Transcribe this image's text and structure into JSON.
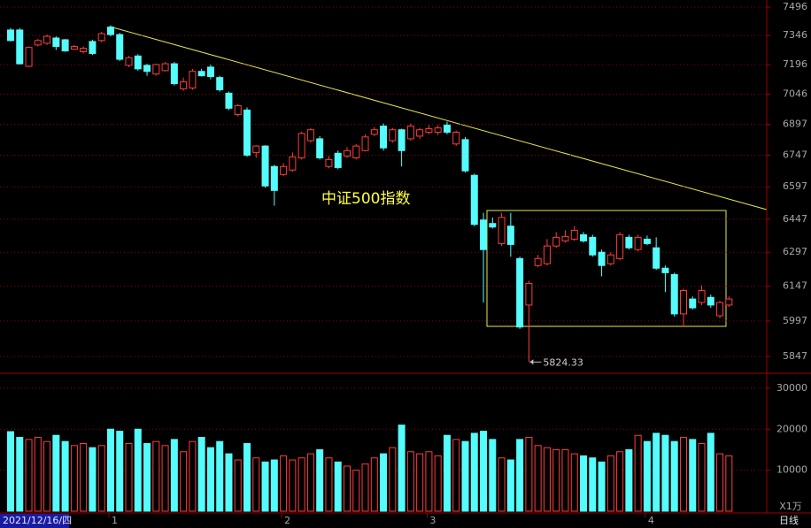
{
  "chart_data": [
    {
      "type": "candlestick",
      "title": "中证500指数",
      "categories": [
        "2021/12/16/四",
        null,
        null,
        null,
        null,
        null,
        null,
        null,
        null,
        null,
        null,
        "1",
        null,
        null,
        null,
        null,
        null,
        null,
        null,
        null,
        null,
        null,
        null,
        null,
        null,
        null,
        null,
        null,
        null,
        null,
        "2",
        null,
        null,
        null,
        null,
        null,
        null,
        null,
        null,
        null,
        null,
        null,
        null,
        null,
        null,
        null,
        "3",
        null,
        null,
        null,
        null,
        null,
        null,
        null,
        null,
        null,
        null,
        null,
        null,
        null,
        null,
        null,
        null,
        null,
        null,
        null,
        null,
        null,
        null,
        null,
        "4",
        null,
        null,
        null,
        null,
        null,
        null,
        null,
        null,
        null
      ],
      "open": [
        7375,
        7375,
        7187,
        7297,
        7306,
        7333,
        7324,
        7275,
        7262,
        7315,
        7320,
        7390,
        7351,
        7192,
        7240,
        7192,
        7148,
        7165,
        7200,
        7073,
        7077,
        7161,
        7183,
        7130,
        7051,
        6945,
        6967,
        6760,
        6791,
        6693,
        6655,
        6676,
        6734,
        6817,
        6826,
        6693,
        6756,
        6743,
        6734,
        6769,
        6848,
        6888,
        6817,
        6870,
        6826,
        6839,
        6858,
        6858,
        6893,
        6801,
        6822,
        6651,
        6443,
        6427,
        6336,
        6415,
        6269,
        6065,
        6238,
        6246,
        6325,
        6348,
        6356,
        6376,
        6364,
        6297,
        6246,
        6269,
        6364,
        6309,
        6356,
        6317,
        6226,
        6198,
        6027,
        6091,
        6076,
        6098,
        6019,
        6065
      ],
      "close": [
        7320,
        7200,
        7284,
        7320,
        7342,
        7289,
        7266,
        7289,
        7280,
        7253,
        7356,
        7351,
        7223,
        7231,
        7174,
        7161,
        7196,
        7200,
        7099,
        7108,
        7161,
        7139,
        7135,
        7068,
        6976,
        6989,
        6747,
        6791,
        6601,
        6580,
        6693,
        6739,
        6852,
        6870,
        6734,
        6726,
        6688,
        6769,
        6791,
        6835,
        6870,
        6782,
        6870,
        6769,
        6888,
        6870,
        6875,
        6879,
        6858,
        6858,
        6672,
        6423,
        6309,
        6411,
        6455,
        6332,
        5971,
        6159,
        6269,
        6325,
        6364,
        6368,
        6396,
        6348,
        6285,
        6238,
        6285,
        6376,
        6317,
        6364,
        6336,
        6226,
        6206,
        6027,
        6128,
        6053,
        6128,
        6065,
        6076,
        6091
      ],
      "high": [
        7385,
        7385,
        7289,
        7328,
        7351,
        7342,
        7328,
        7297,
        7289,
        7324,
        7365,
        7399,
        7360,
        7240,
        7249,
        7200,
        7200,
        7209,
        7209,
        7130,
        7174,
        7174,
        7196,
        7139,
        7059,
        6997,
        6980,
        6795,
        6795,
        6701,
        6709,
        6760,
        6861,
        6879,
        6839,
        6743,
        6769,
        6786,
        6800,
        6848,
        6883,
        6901,
        6879,
        6875,
        6901,
        6879,
        6893,
        6893,
        6910,
        6866,
        6835,
        6659,
        6476,
        6455,
        6476,
        6476,
        6277,
        6171,
        6285,
        6356,
        6388,
        6396,
        6415,
        6388,
        6376,
        6309,
        6297,
        6388,
        6376,
        6376,
        6372,
        6364,
        6238,
        6206,
        6136,
        6102,
        6151,
        6110,
        6083,
        6102
      ],
      "low": [
        7315,
        7196,
        7183,
        7289,
        7297,
        7271,
        7262,
        7271,
        7253,
        7245,
        7311,
        7342,
        7214,
        7183,
        7165,
        7139,
        7139,
        7161,
        7090,
        7064,
        7068,
        7135,
        7121,
        7059,
        6967,
        6936,
        6739,
        6734,
        6593,
        6509,
        6647,
        6668,
        6726,
        6808,
        6726,
        6684,
        6680,
        6734,
        6726,
        6765,
        6839,
        6769,
        6808,
        6693,
        6817,
        6826,
        6848,
        6844,
        6848,
        6792,
        6664,
        6415,
        6076,
        6404,
        6325,
        6277,
        5963,
        5824.33,
        6230,
        6238,
        6317,
        6340,
        6348,
        6340,
        6277,
        6190,
        6238,
        6261,
        6309,
        6301,
        6329,
        6218,
        6121,
        6016,
        5971,
        6046,
        6065,
        6053,
        6008,
        6057
      ],
      "up_color": "#ff3c3c",
      "down_color": "#54fcfc",
      "log": true,
      "grid": true,
      "annotate_min": true,
      "ylim": [
        5778,
        7534
      ],
      "yticks": [
        7496,
        7346,
        7196,
        7046,
        6897,
        6747,
        6597,
        6447,
        6297,
        6147,
        5997,
        5847
      ]
    },
    {
      "type": "bar",
      "unit_label": "X1万",
      "values": [
        19400,
        18000,
        17500,
        18000,
        17000,
        18500,
        17000,
        16000,
        16500,
        15500,
        16000,
        20000,
        19500,
        16500,
        20000,
        16500,
        17000,
        16000,
        17500,
        14500,
        17000,
        18000,
        15500,
        17000,
        14000,
        12500,
        16500,
        13000,
        12000,
        12500,
        13500,
        12500,
        13000,
        14000,
        15000,
        13000,
        12000,
        11000,
        10000,
        11500,
        13000,
        14000,
        15500,
        21000,
        14500,
        14000,
        14500,
        13500,
        18500,
        17500,
        17000,
        19000,
        19500,
        17500,
        13000,
        12500,
        17500,
        18000,
        16000,
        15500,
        15000,
        15000,
        14000,
        13500,
        13000,
        12000,
        13500,
        14500,
        15000,
        18500,
        17000,
        19000,
        18500,
        17000,
        18000,
        17500,
        16500,
        19000,
        14000,
        13500
      ],
      "ylim": [
        0,
        33000
      ],
      "yticks": [
        30000,
        20000,
        10000
      ],
      "grid": true
    }
  ],
  "period_label": "日线"
}
